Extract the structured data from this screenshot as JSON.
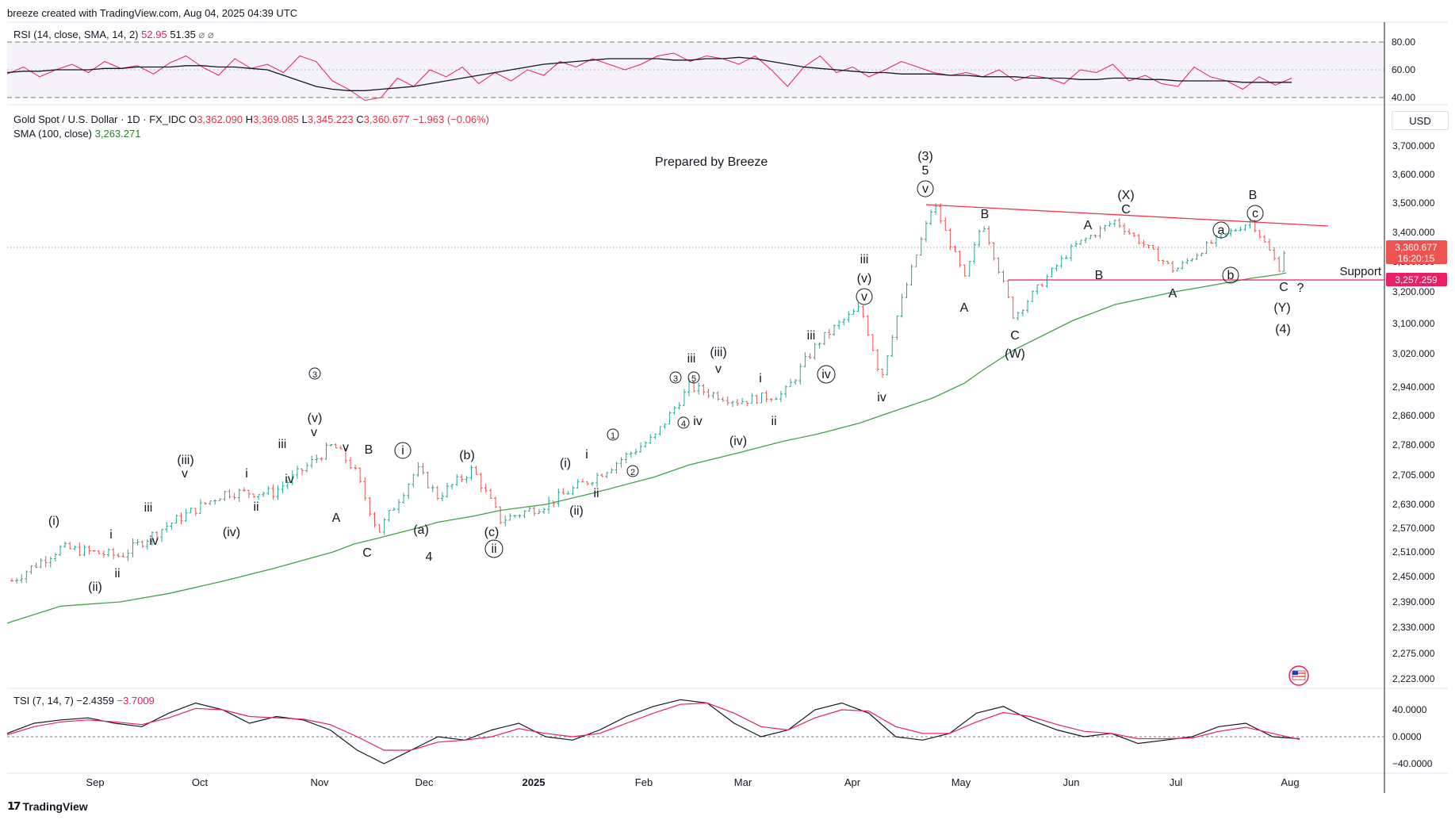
{
  "header": {
    "credit": "breeze created with TradingView.com, Aug 04, 2025 04:39 UTC"
  },
  "rsi": {
    "legend_name": "RSI (14, close, SMA, 14, 2)",
    "value": "52.95",
    "sma_value": "51.35",
    "extra": "⌀ ⌀",
    "ticks": [
      "80.00",
      "60.00",
      "40.00"
    ]
  },
  "main": {
    "symbol": "Gold Spot / U.S. Dollar · 1D · FX_IDC",
    "ohlc": {
      "o_label": "O",
      "o": "3,362.090",
      "h_label": "H",
      "h": "3,369.085",
      "l_label": "L",
      "l": "3,345.223",
      "c_label": "C",
      "c": "3,360.677",
      "change": "−1.963 (−0.06%)"
    },
    "sma_label": "SMA (100, close)",
    "sma_value": "3,263.271",
    "currency": "USD",
    "prepared_by": "Prepared by Breeze",
    "support_label": "Support",
    "price_ticks": [
      "3,700.000",
      "3,600.000",
      "3,500.000",
      "3,400.000",
      "3,300.000",
      "3,200.000",
      "3,100.000",
      "3,020.000",
      "2,940.000",
      "2,860.000",
      "2,780.000",
      "2,705.000",
      "2,630.000",
      "2,570.000",
      "2,510.000",
      "2,450.000",
      "2,390.000",
      "2,330.000",
      "2,275.000",
      "2,223.000"
    ],
    "last_price_tag": "3,360.677",
    "countdown_tag": "16:20:15",
    "support_price_tag": "3,257.259"
  },
  "tsi": {
    "legend_name": "TSI (7, 14, 7)",
    "value": "−2.4359",
    "signal": "−3.7009",
    "ticks": [
      "40.0000",
      "0.0000",
      "−40.0000"
    ]
  },
  "time_axis": [
    "Sep",
    "Oct",
    "Nov",
    "Dec",
    "2025",
    "Feb",
    "Mar",
    "Apr",
    "May",
    "Jun",
    "Jul",
    "Aug"
  ],
  "wave_labels": [
    "(i)",
    "(ii)",
    "i",
    "ii",
    "iii",
    "iv",
    "(iii)",
    "v",
    "(iv)",
    "i",
    "ii",
    "iii",
    "iv",
    "3",
    "v",
    "(v)",
    "v",
    "A",
    "B",
    "C",
    "4",
    "i",
    "(a)",
    "(b)",
    "(c)",
    "ii",
    "(i)",
    "i",
    "(ii)",
    "ii",
    "1",
    "2",
    "3",
    "4",
    "5",
    "iii",
    "iv",
    "(iii)",
    "v",
    "(iv)",
    "i",
    "ii",
    "iii",
    "iv",
    "iii",
    "(v)",
    "v",
    "iv",
    "(3)",
    "5",
    "v",
    "A",
    "B",
    "C",
    "(W)",
    "A",
    "B",
    "(X)",
    "C",
    "A",
    "a",
    "b",
    "B",
    "c",
    "C",
    "?",
    "(Y)",
    "(4)"
  ],
  "brand": "TradingView",
  "colors": {
    "up": "#26a69a",
    "down": "#ef5350",
    "rsi": "#e91e63",
    "sma": "#43a047",
    "resistance": "#f23645",
    "support": "#e91e63"
  },
  "chart_data": [
    {
      "type": "line",
      "title": "RSI (14, close, SMA, 14, 2)",
      "series": [
        {
          "name": "RSI",
          "values": [
            57,
            62,
            55,
            60,
            64,
            58,
            66,
            61,
            63,
            57,
            65,
            70,
            62,
            56,
            68,
            61,
            64,
            58,
            70,
            66,
            52,
            46,
            38,
            40,
            54,
            48,
            60,
            55,
            62,
            50,
            58,
            52,
            60,
            56,
            66,
            62,
            68,
            64,
            60,
            64,
            70,
            72,
            66,
            70,
            68,
            64,
            70,
            60,
            48,
            62,
            70,
            58,
            62,
            55,
            60,
            66,
            62,
            58,
            56,
            58,
            55,
            60,
            52,
            56,
            54,
            50,
            60,
            58,
            64,
            52,
            56,
            50,
            48,
            62,
            55,
            52,
            46,
            55,
            49,
            54
          ]
        },
        {
          "name": "RSI-based MA",
          "values": [
            58,
            59,
            59,
            60,
            60,
            60,
            61,
            61,
            62,
            62,
            62,
            63,
            63,
            62,
            62,
            61,
            60,
            56,
            52,
            48,
            46,
            45,
            45,
            46,
            47,
            48,
            50,
            52,
            54,
            56,
            58,
            60,
            62,
            64,
            65,
            66,
            67,
            68,
            68,
            68,
            68,
            67,
            67,
            68,
            68,
            69,
            68,
            66,
            64,
            62,
            61,
            60,
            59,
            58,
            58,
            57,
            57,
            57,
            56,
            56,
            55,
            55,
            55,
            54,
            54,
            54,
            53,
            53,
            54,
            54,
            53,
            53,
            52,
            52,
            52,
            52,
            51,
            51,
            51,
            51
          ]
        }
      ],
      "ylim": [
        30,
        85
      ]
    },
    {
      "type": "line",
      "title": "Gold Spot / U.S. Dollar · 1D · FX_IDC",
      "x": [
        "2024-08-01",
        "2024-08-15",
        "2024-09-01",
        "2024-09-15",
        "2024-10-01",
        "2024-10-15",
        "2024-11-01",
        "2024-11-07",
        "2024-11-14",
        "2024-11-25",
        "2024-12-01",
        "2024-12-11",
        "2024-12-19",
        "2025-01-01",
        "2025-01-15",
        "2025-02-01",
        "2025-02-11",
        "2025-02-25",
        "2025-03-10",
        "2025-03-20",
        "2025-04-01",
        "2025-04-07",
        "2025-04-22",
        "2025-05-01",
        "2025-05-06",
        "2025-05-15",
        "2025-06-01",
        "2025-06-13",
        "2025-06-30",
        "2025-07-10",
        "2025-07-22",
        "2025-07-30",
        "2025-08-01"
      ],
      "series": [
        {
          "name": "Close",
          "values": [
            2440,
            2520,
            2500,
            2580,
            2660,
            2660,
            2780,
            2720,
            2560,
            2720,
            2650,
            2720,
            2590,
            2630,
            2700,
            2800,
            2940,
            2900,
            2920,
            3050,
            3150,
            2960,
            3500,
            3240,
            3440,
            3120,
            3350,
            3440,
            3270,
            3360,
            3440,
            3280,
            3360
          ]
        },
        {
          "name": "SMA (100, close)",
          "values": [
            2340,
            2380,
            2390,
            2410,
            2440,
            2470,
            2510,
            2530,
            2545,
            2570,
            2585,
            2600,
            2615,
            2630,
            2660,
            2700,
            2730,
            2760,
            2790,
            2810,
            2840,
            2860,
            2910,
            2950,
            2980,
            3030,
            3110,
            3160,
            3200,
            3220,
            3245,
            3258,
            3263
          ]
        }
      ],
      "ylabel": "USD",
      "ylim": [
        2223,
        3700
      ]
    },
    {
      "type": "line",
      "title": "TSI (7, 14, 7)",
      "series": [
        {
          "name": "TSI",
          "values": [
            5,
            20,
            25,
            28,
            20,
            15,
            35,
            50,
            40,
            20,
            30,
            25,
            10,
            -20,
            -40,
            -20,
            0,
            -5,
            10,
            20,
            0,
            -5,
            10,
            30,
            45,
            55,
            50,
            20,
            0,
            10,
            40,
            50,
            35,
            0,
            -5,
            5,
            35,
            45,
            25,
            10,
            0,
            5,
            -10,
            -5,
            0,
            15,
            20,
            0,
            -3
          ]
        },
        {
          "name": "Signal",
          "values": [
            3,
            15,
            22,
            25,
            22,
            18,
            28,
            42,
            40,
            30,
            28,
            26,
            18,
            0,
            -20,
            -20,
            -8,
            -5,
            0,
            12,
            5,
            0,
            5,
            20,
            35,
            48,
            50,
            35,
            15,
            10,
            28,
            40,
            38,
            15,
            5,
            5,
            22,
            36,
            30,
            18,
            8,
            5,
            -3,
            -3,
            -2,
            8,
            14,
            5,
            -4
          ]
        }
      ],
      "ylim": [
        -50,
        60
      ]
    }
  ]
}
